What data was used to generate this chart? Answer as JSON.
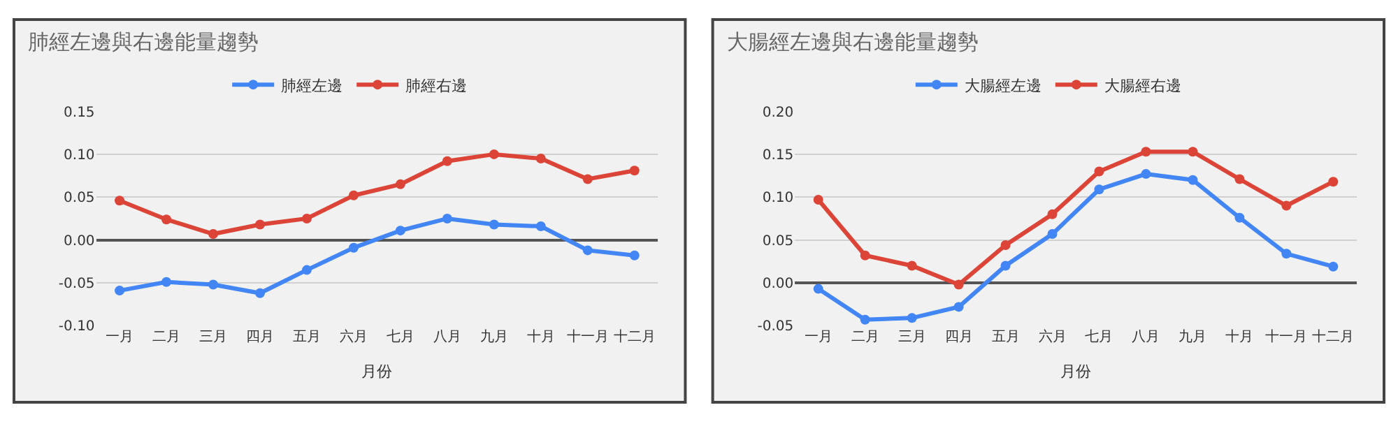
{
  "chart_data": [
    {
      "type": "line",
      "title": "肺經左邊與右邊能量趨勢",
      "xlabel": "月份",
      "categories": [
        "一月",
        "二月",
        "三月",
        "四月",
        "五月",
        "六月",
        "七月",
        "八月",
        "九月",
        "十月",
        "十一月",
        "十二月"
      ],
      "series": [
        {
          "name": "肺經左邊",
          "color": "#4285f4",
          "values": [
            -0.059,
            -0.049,
            -0.052,
            -0.062,
            -0.035,
            -0.009,
            0.011,
            0.025,
            0.018,
            0.016,
            -0.012,
            -0.018
          ]
        },
        {
          "name": "肺經右邊",
          "color": "#db4437",
          "values": [
            0.046,
            0.024,
            0.007,
            0.018,
            0.025,
            0.052,
            0.065,
            0.092,
            0.1,
            0.095,
            0.071,
            0.081
          ]
        }
      ],
      "ylim": [
        -0.1,
        0.15
      ],
      "yticks": [
        {
          "value": -0.1,
          "label": "-0.10"
        },
        {
          "value": -0.05,
          "label": "-0.05"
        },
        {
          "value": 0,
          "label": "0.00"
        },
        {
          "value": 0.05,
          "label": "0.05"
        },
        {
          "value": 0.1,
          "label": "0.10"
        },
        {
          "value": 0.15,
          "label": "0.15"
        }
      ],
      "grid": "y",
      "legend": "top",
      "marker": "circle",
      "line_style": "solid"
    },
    {
      "type": "line",
      "title": "大腸經左邊與右邊能量趨勢",
      "xlabel": "月份",
      "categories": [
        "一月",
        "二月",
        "三月",
        "四月",
        "五月",
        "六月",
        "七月",
        "八月",
        "九月",
        "十月",
        "十一月",
        "十二月"
      ],
      "series": [
        {
          "name": "大腸經左邊",
          "color": "#4285f4",
          "values": [
            -0.007,
            -0.043,
            -0.041,
            -0.028,
            0.02,
            0.057,
            0.109,
            0.127,
            0.12,
            0.076,
            0.034,
            0.019
          ]
        },
        {
          "name": "大腸經右邊",
          "color": "#db4437",
          "values": [
            0.097,
            0.032,
            0.02,
            -0.002,
            0.044,
            0.08,
            0.13,
            0.153,
            0.153,
            0.121,
            0.09,
            0.118
          ]
        }
      ],
      "ylim": [
        -0.05,
        0.2
      ],
      "yticks": [
        {
          "value": -0.05,
          "label": "-0.05"
        },
        {
          "value": 0,
          "label": "0.00"
        },
        {
          "value": 0.05,
          "label": "0.05"
        },
        {
          "value": 0.1,
          "label": "0.10"
        },
        {
          "value": 0.15,
          "label": "0.15"
        },
        {
          "value": 0.2,
          "label": "0.20"
        }
      ],
      "grid": "y",
      "legend": "top",
      "marker": "circle",
      "line_style": "solid"
    }
  ]
}
